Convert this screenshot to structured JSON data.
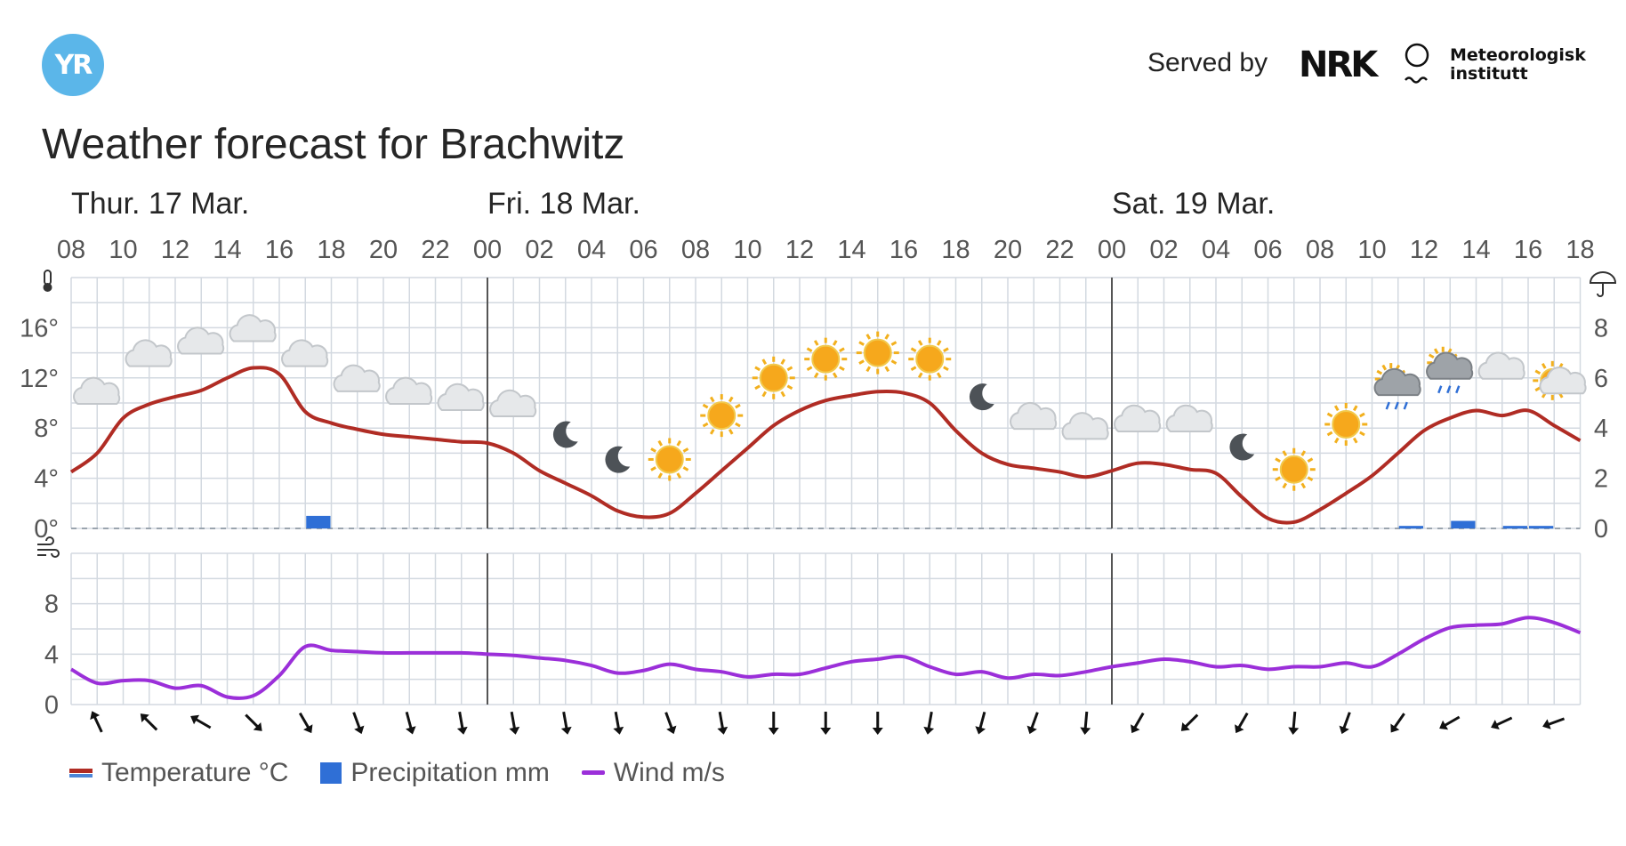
{
  "header": {
    "logo_text": "YR",
    "served_by": "Served by",
    "nrk_text": "NRK",
    "met_line1": "Meteorologisk",
    "met_line2": "institutt",
    "title": "Weather forecast for Brachwitz"
  },
  "legend": {
    "temperature": "Temperature °C",
    "precipitation": "Precipitation mm",
    "wind": "Wind m/s"
  },
  "colors": {
    "temperature": "#b02c24",
    "precipitation": "#2f6fd6",
    "wind": "#9b2fd9",
    "grid": "#d3d9e0",
    "day_divider": "#555555"
  },
  "chart_data": {
    "type": "line",
    "days": [
      {
        "label": "Thur. 17 Mar.",
        "start_hour_index": 0
      },
      {
        "label": "Fri. 18 Mar.",
        "start_hour_index": 16
      },
      {
        "label": "Sat. 19 Mar.",
        "start_hour_index": 40
      }
    ],
    "hour_tick_labels": [
      "08",
      "10",
      "12",
      "14",
      "16",
      "18",
      "20",
      "22",
      "00",
      "02",
      "04",
      "06",
      "08",
      "10",
      "12",
      "14",
      "16",
      "18",
      "20",
      "22",
      "00",
      "02",
      "04",
      "06",
      "08",
      "10",
      "12",
      "14",
      "16",
      "18"
    ],
    "temperature_axis": {
      "ticks": [
        "0°",
        "4°",
        "8°",
        "12°",
        "16°"
      ],
      "range": [
        0,
        20
      ]
    },
    "precipitation_axis": {
      "ticks": [
        "0",
        "2",
        "4",
        "6",
        "8"
      ],
      "range": [
        0,
        10
      ]
    },
    "wind_axis": {
      "ticks": [
        "0",
        "4",
        "8"
      ],
      "range": [
        0,
        12
      ]
    },
    "series": [
      {
        "name": "Temperature °C",
        "hours": [
          0,
          1,
          2,
          3,
          4,
          5,
          6,
          7,
          8,
          9,
          10,
          11,
          12,
          13,
          14,
          15,
          16,
          17,
          18,
          19,
          20,
          21,
          22,
          23,
          24,
          25,
          26,
          27,
          28,
          29,
          30,
          31,
          32,
          33,
          34,
          35,
          36,
          37,
          38,
          39,
          40,
          41,
          42,
          43,
          44,
          45,
          46,
          47,
          48,
          49,
          50,
          51,
          52,
          53,
          54,
          55,
          56,
          57,
          58
        ],
        "values": [
          4.5,
          6,
          8.8,
          9.9,
          10.5,
          11.0,
          12.0,
          12.8,
          12.3,
          9.3,
          8.4,
          7.9,
          7.5,
          7.3,
          7.1,
          6.9,
          6.8,
          6.0,
          4.6,
          3.6,
          2.6,
          1.4,
          0.9,
          1.2,
          2.8,
          4.6,
          6.4,
          8.2,
          9.4,
          10.2,
          10.6,
          10.9,
          10.8,
          10.0,
          7.8,
          6.0,
          5.1,
          4.8,
          4.5,
          4.1,
          4.6,
          5.2,
          5.1,
          4.7,
          4.4,
          2.5,
          0.8,
          0.5,
          1.5,
          2.8,
          4.2,
          6.0,
          7.8,
          8.8,
          9.4,
          9.0,
          9.4,
          8.2,
          7.0
        ]
      },
      {
        "name": "Precipitation mm",
        "bars": [
          {
            "hour": 9,
            "value": 0.5
          },
          {
            "hour": 51,
            "value": 0.1
          },
          {
            "hour": 53,
            "value": 0.3
          },
          {
            "hour": 55,
            "value": 0.1
          },
          {
            "hour": 56,
            "value": 0.1
          }
        ]
      },
      {
        "name": "Wind m/s",
        "hours": [
          0,
          1,
          2,
          3,
          4,
          5,
          6,
          7,
          8,
          9,
          10,
          11,
          12,
          13,
          14,
          15,
          16,
          17,
          18,
          19,
          20,
          21,
          22,
          23,
          24,
          25,
          26,
          27,
          28,
          29,
          30,
          31,
          32,
          33,
          34,
          35,
          36,
          37,
          38,
          39,
          40,
          41,
          42,
          43,
          44,
          45,
          46,
          47,
          48,
          49,
          50,
          51,
          52,
          53,
          54,
          55,
          56,
          57,
          58
        ],
        "values": [
          2.8,
          1.7,
          1.9,
          1.9,
          1.3,
          1.5,
          0.6,
          0.7,
          2.3,
          4.6,
          4.3,
          4.2,
          4.1,
          4.1,
          4.1,
          4.1,
          4.0,
          3.9,
          3.7,
          3.5,
          3.1,
          2.5,
          2.7,
          3.2,
          2.8,
          2.6,
          2.2,
          2.4,
          2.4,
          2.9,
          3.4,
          3.6,
          3.8,
          3.0,
          2.4,
          2.6,
          2.1,
          2.4,
          2.3,
          2.6,
          3.0,
          3.3,
          3.6,
          3.4,
          3.0,
          3.1,
          2.8,
          3.0,
          3.0,
          3.3,
          3.0,
          4.0,
          5.2,
          6.1,
          6.3,
          6.4,
          6.9,
          6.5,
          5.7
        ]
      }
    ],
    "weather_symbols": [
      {
        "hour": 1,
        "symbol": "cloud"
      },
      {
        "hour": 3,
        "symbol": "cloud"
      },
      {
        "hour": 5,
        "symbol": "cloud"
      },
      {
        "hour": 7,
        "symbol": "cloud"
      },
      {
        "hour": 9,
        "symbol": "cloud"
      },
      {
        "hour": 11,
        "symbol": "cloud"
      },
      {
        "hour": 13,
        "symbol": "cloud"
      },
      {
        "hour": 15,
        "symbol": "cloud"
      },
      {
        "hour": 17,
        "symbol": "cloud"
      },
      {
        "hour": 19,
        "symbol": "moon"
      },
      {
        "hour": 21,
        "symbol": "moon"
      },
      {
        "hour": 23,
        "symbol": "sun"
      },
      {
        "hour": 25,
        "symbol": "sun"
      },
      {
        "hour": 27,
        "symbol": "sun"
      },
      {
        "hour": 29,
        "symbol": "sun"
      },
      {
        "hour": 31,
        "symbol": "sun"
      },
      {
        "hour": 33,
        "symbol": "sun"
      },
      {
        "hour": 35,
        "symbol": "moon"
      },
      {
        "hour": 37,
        "symbol": "cloud"
      },
      {
        "hour": 39,
        "symbol": "cloud"
      },
      {
        "hour": 41,
        "symbol": "cloud"
      },
      {
        "hour": 43,
        "symbol": "cloud"
      },
      {
        "hour": 45,
        "symbol": "moon"
      },
      {
        "hour": 47,
        "symbol": "sun"
      },
      {
        "hour": 49,
        "symbol": "sun"
      },
      {
        "hour": 51,
        "symbol": "sun-cloud-rain"
      },
      {
        "hour": 53,
        "symbol": "sun-cloud-rain"
      },
      {
        "hour": 55,
        "symbol": "cloud"
      },
      {
        "hour": 57,
        "symbol": "sun-cloud"
      }
    ],
    "symbol_heights": [
      {
        "hour": 1,
        "temp": 10.5
      },
      {
        "hour": 3,
        "temp": 13.5
      },
      {
        "hour": 5,
        "temp": 14.5
      },
      {
        "hour": 7,
        "temp": 15.5
      },
      {
        "hour": 9,
        "temp": 13.5
      },
      {
        "hour": 11,
        "temp": 11.5
      },
      {
        "hour": 13,
        "temp": 10.5
      },
      {
        "hour": 15,
        "temp": 10
      },
      {
        "hour": 17,
        "temp": 9.5
      },
      {
        "hour": 19,
        "temp": 7.5
      },
      {
        "hour": 21,
        "temp": 5.5
      },
      {
        "hour": 23,
        "temp": 5.5
      },
      {
        "hour": 25,
        "temp": 9
      },
      {
        "hour": 27,
        "temp": 12
      },
      {
        "hour": 29,
        "temp": 13.5
      },
      {
        "hour": 31,
        "temp": 14
      },
      {
        "hour": 33,
        "temp": 13.5
      },
      {
        "hour": 35,
        "temp": 10.5
      },
      {
        "hour": 37,
        "temp": 8.5
      },
      {
        "hour": 39,
        "temp": 7.7
      },
      {
        "hour": 41,
        "temp": 8.3
      },
      {
        "hour": 43,
        "temp": 8.3
      },
      {
        "hour": 45,
        "temp": 6.5
      },
      {
        "hour": 47,
        "temp": 4.7
      },
      {
        "hour": 49,
        "temp": 8.3
      },
      {
        "hour": 51,
        "temp": 11.2
      },
      {
        "hour": 53,
        "temp": 12.5
      },
      {
        "hour": 55,
        "temp": 12.5
      },
      {
        "hour": 57,
        "temp": 11.5
      }
    ],
    "wind_direction_arrows_deg": [
      335,
      315,
      300,
      135,
      150,
      160,
      165,
      170,
      170,
      170,
      170,
      160,
      170,
      180,
      180,
      180,
      190,
      195,
      200,
      185,
      210,
      225,
      210,
      185,
      200,
      215,
      240,
      245,
      250
    ]
  }
}
